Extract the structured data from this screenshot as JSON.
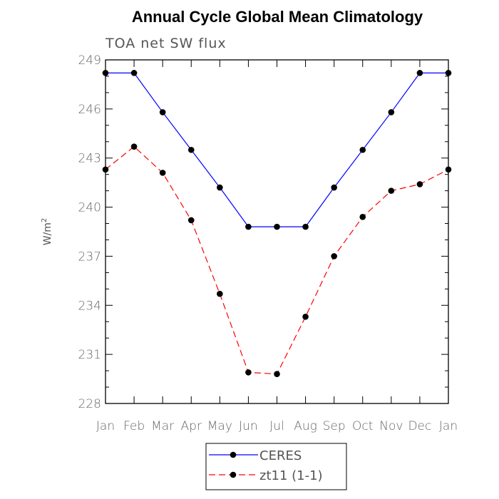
{
  "chart_data": {
    "type": "line",
    "title": "Annual Cycle Global Mean Climatology",
    "subtitle": "TOA net SW flux",
    "xlabel": "",
    "ylabel": "W/m",
    "ylabel_sup": "2",
    "categories": [
      "Jan",
      "Feb",
      "Mar",
      "Apr",
      "May",
      "Jun",
      "Jul",
      "Aug",
      "Sep",
      "Oct",
      "Nov",
      "Dec",
      "Jan"
    ],
    "ylim": [
      228,
      249
    ],
    "yticks": [
      228,
      231,
      234,
      237,
      240,
      243,
      246,
      249
    ],
    "yminor_step": 1,
    "series": [
      {
        "name": "CERES",
        "color": "#0000ff",
        "dash": "solid",
        "values": [
          248.2,
          248.2,
          245.8,
          243.5,
          241.2,
          238.8,
          238.8,
          238.8,
          241.2,
          243.5,
          245.8,
          248.2,
          248.2
        ]
      },
      {
        "name": "zt11 (1-1)",
        "color": "#ff0000",
        "dash": "dashed",
        "values": [
          242.3,
          243.7,
          242.1,
          239.2,
          234.7,
          229.9,
          229.8,
          233.3,
          237.0,
          239.4,
          241.0,
          241.4,
          242.3
        ]
      }
    ]
  }
}
